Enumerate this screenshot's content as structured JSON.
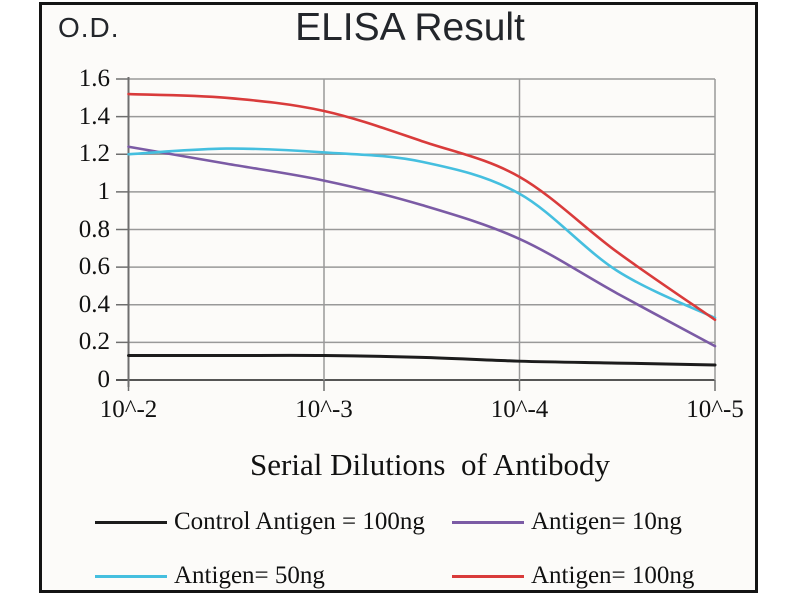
{
  "header": {
    "y_axis_unit_label": "O.D."
  },
  "chart_data": {
    "type": "line",
    "title": "ELISA Result",
    "xlabel": "Serial Dilutions  of Antibody",
    "ylabel": "O.D.",
    "grid": true,
    "legend_position": "bottom",
    "ylim": [
      0,
      1.6
    ],
    "y_tick_values": [
      0,
      0.2,
      0.4,
      0.6,
      0.8,
      1,
      1.2,
      1.4,
      1.6
    ],
    "y_tick_labels": [
      "0",
      "0.2",
      "0.4",
      "0.6",
      "0.8",
      "1",
      "1.2",
      "1.4",
      "1.6"
    ],
    "x_tick_exponents": [
      -2,
      -3,
      -4,
      -5
    ],
    "x_tick_labels": [
      "10^-2",
      "10^-3",
      "10^-4",
      "10^-5"
    ],
    "x": [
      -2,
      -2.5,
      -3,
      -3.5,
      -4,
      -4.5,
      -5
    ],
    "series": [
      {
        "name": "Control Antigen = 100ng",
        "color": "#1c1c1c",
        "width": 3,
        "values": [
          0.13,
          0.13,
          0.13,
          0.12,
          0.1,
          0.09,
          0.08
        ]
      },
      {
        "name": "Antigen= 10ng",
        "color": "#7b5ba5",
        "width": 2.6,
        "values": [
          1.24,
          1.15,
          1.06,
          0.93,
          0.75,
          0.46,
          0.18
        ]
      },
      {
        "name": "Antigen= 50ng",
        "color": "#45bfdf",
        "width": 2.6,
        "values": [
          1.2,
          1.23,
          1.21,
          1.16,
          0.99,
          0.58,
          0.33
        ]
      },
      {
        "name": "Antigen= 100ng",
        "color": "#d93b3b",
        "width": 2.6,
        "values": [
          1.52,
          1.5,
          1.43,
          1.27,
          1.08,
          0.68,
          0.32
        ]
      }
    ],
    "colors": {
      "gridline": "#999999",
      "axis": "#6e6e6e",
      "text": "#111111",
      "frame_border": "#141414"
    }
  },
  "legend_items": [
    {
      "label": "Control Antigen = 100ng"
    },
    {
      "label": "Antigen= 10ng"
    },
    {
      "label": "Antigen= 50ng"
    },
    {
      "label": "Antigen= 100ng"
    }
  ]
}
